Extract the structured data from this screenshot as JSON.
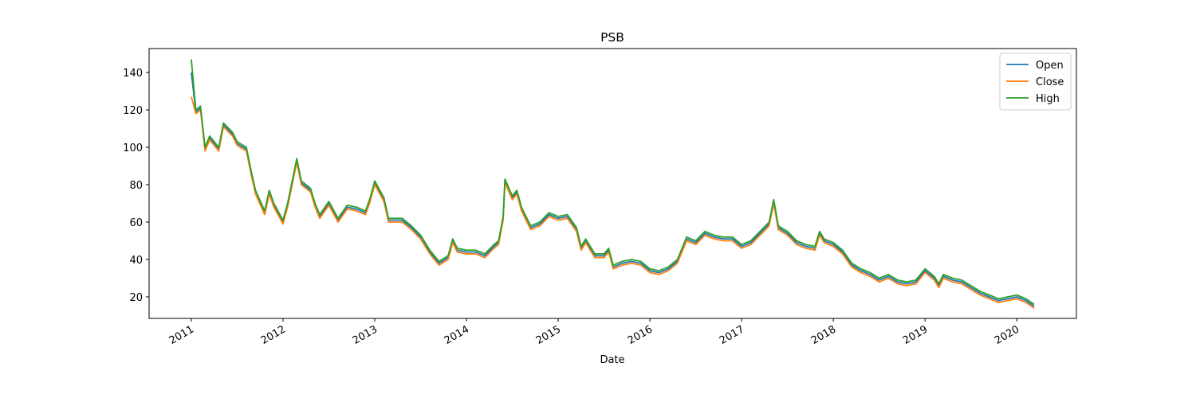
{
  "chart_data": {
    "type": "line",
    "title": "PSB",
    "xlabel": "Date",
    "x": [
      2011.0,
      2011.05,
      2011.1,
      2011.15,
      2011.2,
      2011.3,
      2011.35,
      2011.45,
      2011.5,
      2011.6,
      2011.65,
      2011.7,
      2011.8,
      2011.85,
      2011.9,
      2012.0,
      2012.05,
      2012.15,
      2012.2,
      2012.3,
      2012.35,
      2012.4,
      2012.5,
      2012.6,
      2012.7,
      2012.8,
      2012.9,
      2012.95,
      2013.0,
      2013.1,
      2013.15,
      2013.3,
      2013.4,
      2013.5,
      2013.6,
      2013.7,
      2013.8,
      2013.85,
      2013.9,
      2014.0,
      2014.1,
      2014.2,
      2014.3,
      2014.35,
      2014.4,
      2014.42,
      2014.5,
      2014.55,
      2014.6,
      2014.7,
      2014.8,
      2014.9,
      2015.0,
      2015.1,
      2015.2,
      2015.25,
      2015.3,
      2015.4,
      2015.5,
      2015.55,
      2015.6,
      2015.7,
      2015.8,
      2015.9,
      2016.0,
      2016.1,
      2016.2,
      2016.3,
      2016.4,
      2016.5,
      2016.6,
      2016.7,
      2016.8,
      2016.9,
      2017.0,
      2017.1,
      2017.2,
      2017.3,
      2017.35,
      2017.4,
      2017.5,
      2017.6,
      2017.7,
      2017.8,
      2017.85,
      2017.9,
      2018.0,
      2018.1,
      2018.2,
      2018.3,
      2018.4,
      2018.5,
      2018.6,
      2018.7,
      2018.8,
      2018.9,
      2019.0,
      2019.1,
      2019.15,
      2019.2,
      2019.3,
      2019.4,
      2019.5,
      2019.6,
      2019.7,
      2019.8,
      2019.9,
      2020.0,
      2020.1,
      2020.19
    ],
    "series": [
      {
        "name": "Open",
        "color": "#1f77b4",
        "values": [
          140,
          119,
          121,
          99,
          105,
          99,
          112,
          107,
          102,
          99,
          87,
          76,
          65,
          76,
          69,
          60,
          69,
          93,
          81,
          77,
          69,
          63,
          70,
          61,
          68,
          67,
          65,
          72,
          81,
          72,
          61,
          61,
          57,
          52,
          44,
          38,
          41,
          50,
          45,
          44,
          44,
          42,
          47,
          49,
          62,
          82,
          73,
          76,
          67,
          57,
          59,
          64,
          62,
          63,
          56,
          46,
          50,
          42,
          42,
          45,
          36,
          38,
          39,
          38,
          34,
          33,
          35,
          39,
          51,
          49,
          54,
          52,
          51,
          51,
          47,
          49,
          54,
          59,
          71,
          57,
          54,
          49,
          47,
          46,
          54,
          50,
          48,
          44,
          37,
          34,
          32,
          29,
          31,
          28,
          27,
          28,
          34,
          30,
          26,
          31,
          29,
          28,
          25,
          22,
          20,
          18,
          19,
          20,
          18,
          15
        ]
      },
      {
        "name": "Close",
        "color": "#ff7f0e",
        "values": [
          127,
          118,
          120,
          98,
          104,
          98,
          111,
          106,
          101,
          98,
          86,
          75,
          64,
          75,
          68,
          59,
          68,
          92,
          80,
          76,
          68,
          62,
          69,
          60,
          67,
          66,
          64,
          71,
          80,
          71,
          60,
          60,
          56,
          51,
          43,
          37,
          40,
          49,
          44,
          43,
          43,
          41,
          46,
          48,
          61,
          81,
          72,
          75,
          66,
          56,
          58,
          63,
          61,
          62,
          55,
          45,
          49,
          41,
          41,
          44,
          35,
          37,
          38,
          37,
          33,
          32,
          34,
          38,
          50,
          48,
          53,
          51,
          50,
          50,
          46,
          48,
          53,
          58,
          70,
          56,
          53,
          48,
          46,
          45,
          53,
          49,
          47,
          43,
          36,
          33,
          31,
          28,
          30,
          27,
          26,
          27,
          33,
          29,
          25,
          30,
          28,
          27,
          24,
          21,
          19,
          17,
          18,
          19,
          17,
          14
        ]
      },
      {
        "name": "High",
        "color": "#2ca02c",
        "values": [
          147,
          120,
          122,
          100,
          106,
          100,
          113,
          108,
          103,
          100,
          88,
          77,
          66,
          77,
          70,
          61,
          70,
          94,
          82,
          78,
          70,
          64,
          71,
          62,
          69,
          68,
          66,
          73,
          82,
          73,
          62,
          62,
          58,
          53,
          45,
          39,
          42,
          51,
          46,
          45,
          45,
          43,
          48,
          50,
          63,
          83,
          74,
          77,
          68,
          58,
          60,
          65,
          63,
          64,
          57,
          47,
          51,
          43,
          43,
          46,
          37,
          39,
          40,
          39,
          35,
          34,
          36,
          40,
          52,
          50,
          55,
          53,
          52,
          52,
          48,
          50,
          55,
          60,
          72,
          58,
          55,
          50,
          48,
          47,
          55,
          51,
          49,
          45,
          38,
          35,
          33,
          30,
          32,
          29,
          28,
          29,
          35,
          31,
          27,
          32,
          30,
          29,
          26,
          23,
          21,
          19,
          20,
          21,
          19,
          16
        ]
      }
    ],
    "xlim": [
      2010.54,
      2020.65
    ],
    "xticks": [
      2011,
      2012,
      2013,
      2014,
      2015,
      2016,
      2017,
      2018,
      2019,
      2020
    ],
    "ylim": [
      8.5,
      152.8
    ],
    "yticks": [
      20,
      40,
      60,
      80,
      100,
      120,
      140
    ],
    "legend": "upper right"
  }
}
